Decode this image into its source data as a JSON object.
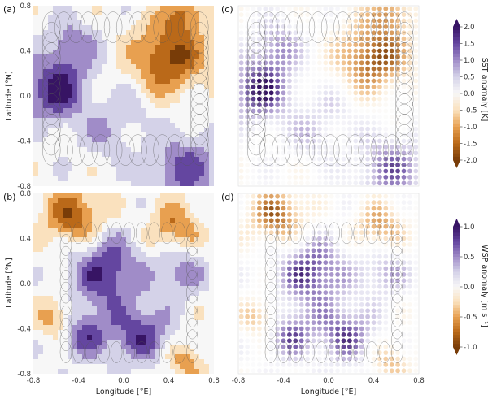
{
  "chart_data": [
    {
      "type": "heatmap",
      "panel_label": "(a)",
      "variable": "sst",
      "style": "contour",
      "xlim": [
        -0.8,
        0.8
      ],
      "ylim": [
        -0.8,
        0.8
      ],
      "xticks": [
        "",
        "",
        "",
        "",
        ""
      ],
      "yticks": [
        "0.8",
        "0.4",
        "0.0",
        "-0.4",
        "-0.8"
      ],
      "xlabel": "",
      "ylabel": "Latitude [°N]"
    },
    {
      "type": "scatter",
      "panel_label": "(c)",
      "variable": "sst",
      "style": "dots",
      "xlim": [
        -0.8,
        0.8
      ],
      "ylim": [
        -0.8,
        0.8
      ],
      "xticks": [
        "",
        "",
        "",
        "",
        ""
      ],
      "yticks": [
        "",
        "",
        "",
        "",
        ""
      ],
      "xlabel": "",
      "ylabel": ""
    },
    {
      "type": "heatmap",
      "panel_label": "(b)",
      "variable": "wsp",
      "style": "contour",
      "xlim": [
        -0.8,
        0.8
      ],
      "ylim": [
        -0.8,
        0.8
      ],
      "xticks": [
        "-0.8",
        "-0.4",
        "0.0",
        "0.4",
        "0.8"
      ],
      "yticks": [
        "0.8",
        "0.4",
        "0.0",
        "-0.4",
        "-0.8"
      ],
      "xlabel": "Longitude [°E]",
      "ylabel": "Latitude [°N]"
    },
    {
      "type": "scatter",
      "panel_label": "(d)",
      "variable": "wsp",
      "style": "dots",
      "xlim": [
        -0.8,
        0.8
      ],
      "ylim": [
        -0.8,
        0.8
      ],
      "xticks": [
        "-0.8",
        "-0.4",
        "0.0",
        "0.4",
        "0.8"
      ],
      "yticks": [
        "",
        "",
        "",
        "",
        ""
      ],
      "xlabel": "Longitude [°E]",
      "ylabel": ""
    }
  ],
  "colorbars": [
    {
      "variable": "sst",
      "label": "SST anomaly [K]",
      "range": [
        -2.0,
        2.0
      ],
      "ticks": [
        "2.0",
        "1.5",
        "1.0",
        "0.5",
        "0.0",
        "-0.5",
        "-1.0",
        "-1.5",
        "-2.0"
      ]
    },
    {
      "variable": "wsp",
      "label": "WSP anomaly [m s⁻¹]",
      "range": [
        -1.0,
        1.0
      ],
      "ticks": [
        "1.0",
        "0.5",
        "0.0",
        "-0.5",
        "-1.0"
      ]
    }
  ],
  "colors": {
    "positive": "#3f1a6b",
    "negative": "#8a4a08",
    "neutral": "#f7f7f7",
    "track": "#555555"
  }
}
